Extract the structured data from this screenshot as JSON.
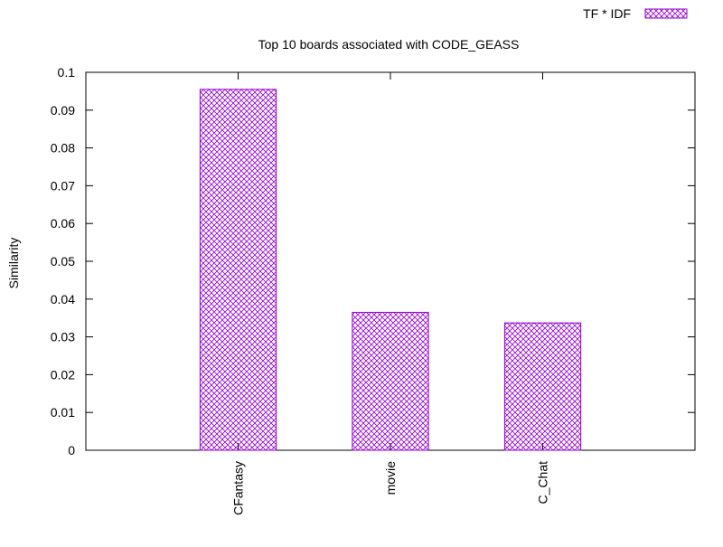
{
  "chart_data": {
    "type": "bar",
    "title": "Top 10 boards associated with CODE_GEASS",
    "xlabel": "",
    "ylabel": "Similarity",
    "categories": [
      "CFantasy",
      "movie",
      "C_Chat"
    ],
    "series": [
      {
        "name": "TF * IDF",
        "values": [
          0.0955,
          0.0365,
          0.0337
        ],
        "color": "#9400d3"
      }
    ],
    "ylim": [
      0,
      0.1
    ],
    "yticks": [
      "0",
      "0.01",
      "0.02",
      "0.03",
      "0.04",
      "0.05",
      "0.06",
      "0.07",
      "0.08",
      "0.09",
      "0.1"
    ],
    "grid": false,
    "legend_position": "top-right",
    "bar_fill": "crosshatch"
  }
}
